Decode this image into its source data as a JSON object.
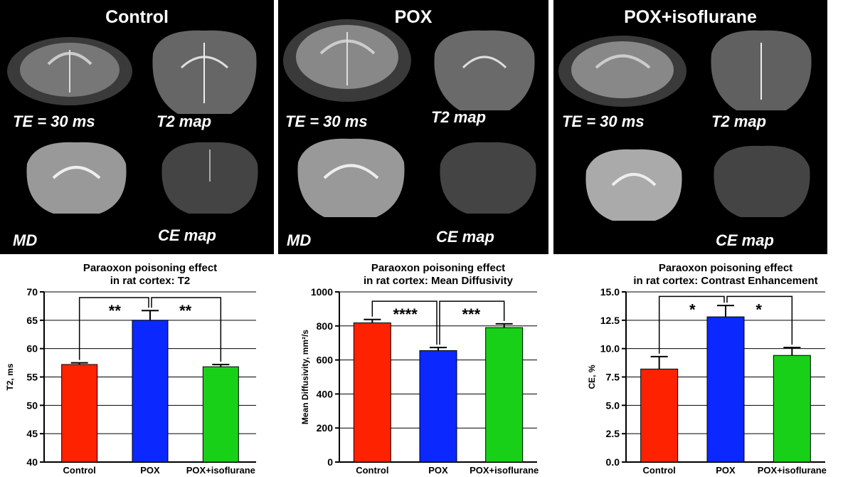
{
  "mri_panels": [
    {
      "title": "Control",
      "labels": [
        "TE = 30 ms",
        "T2 map",
        "MD",
        "CE map"
      ]
    },
    {
      "title": "POX",
      "labels": [
        "TE = 30 ms",
        "T2 map",
        "MD",
        "CE map"
      ]
    },
    {
      "title": "POX+isoflurane",
      "labels": [
        "TE = 30 ms",
        "T2 map",
        "CE map"
      ]
    }
  ],
  "colors": {
    "control": "#ff2200",
    "pox": "#0a28ff",
    "iso": "#19d019"
  },
  "chart_data": [
    {
      "type": "bar",
      "title": [
        "Paraoxon poisoning effect",
        "in rat cortex: T2"
      ],
      "categories": [
        "Control",
        "POX",
        "POX+isoflurane"
      ],
      "values": [
        57.2,
        65.0,
        56.8
      ],
      "errors": [
        0.3,
        1.7,
        0.4
      ],
      "ylabel": "T2, ms",
      "ylim": [
        40,
        70
      ],
      "yticks": [
        "40",
        "45",
        "50",
        "55",
        "60",
        "65",
        "70"
      ],
      "significance": [
        "**",
        "**"
      ],
      "bracket_top": 69
    },
    {
      "type": "bar",
      "title": [
        "Paraoxon poisoning effect",
        "in rat cortex: Mean Diffusivity"
      ],
      "categories": [
        "Control",
        "POX",
        "POX+isoflurane"
      ],
      "values": [
        818,
        655,
        790
      ],
      "errors": [
        20,
        18,
        22
      ],
      "ylabel": "Mean Diffusivity, mm²/s",
      "ylim": [
        0,
        1000
      ],
      "yticks": [
        "0",
        "200",
        "400",
        "600",
        "800",
        "1000"
      ],
      "significance": [
        "****",
        "***"
      ],
      "bracket_top": 945
    },
    {
      "type": "bar",
      "title": [
        "Paraoxon poisoning effect",
        "in rat cortex: Contrast Enhancement"
      ],
      "categories": [
        "Control",
        "POX",
        "POX+isoflurane"
      ],
      "values": [
        8.2,
        12.8,
        9.4
      ],
      "errors": [
        1.1,
        1.0,
        0.7
      ],
      "ylabel": "CE, %",
      "ylim": [
        0,
        15
      ],
      "yticks": [
        "0.0",
        "2.5",
        "5.0",
        "7.5",
        "10.0",
        "12.5",
        "15.0"
      ],
      "significance": [
        "*",
        "*"
      ],
      "bracket_top": 14.6
    }
  ]
}
